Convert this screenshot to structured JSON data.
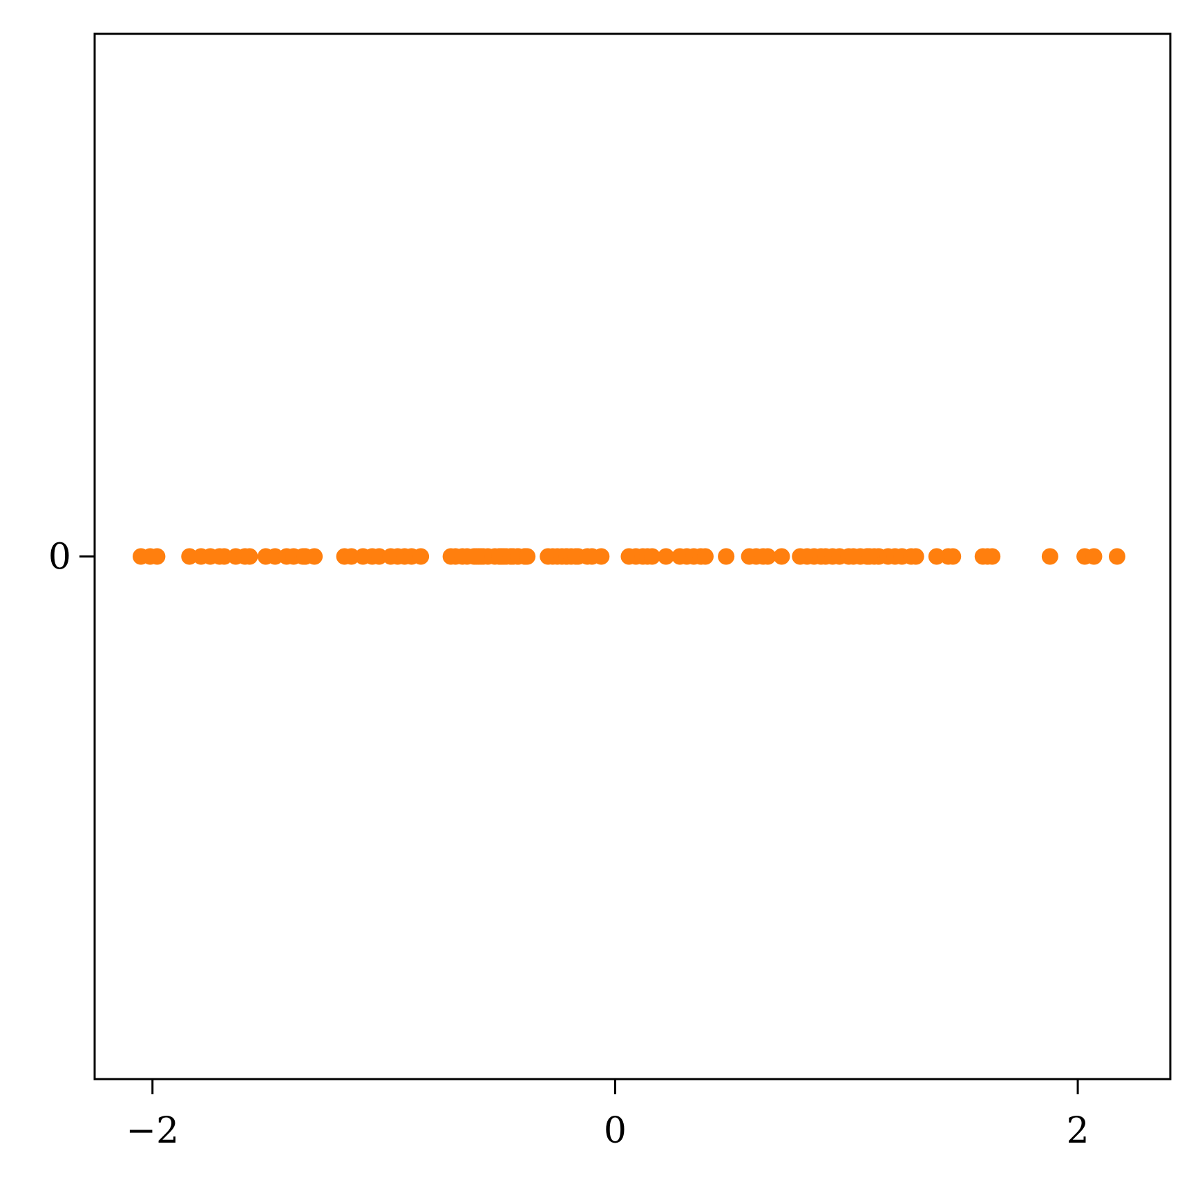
{
  "chart_data": {
    "type": "scatter",
    "title": "",
    "xlabel": "",
    "ylabel": "",
    "xlim": [
      -2.25,
      2.4
    ],
    "ylim": [
      -1,
      1
    ],
    "x_ticks": [
      -2,
      0,
      2
    ],
    "x_tick_labels": [
      "−2",
      "0",
      "2"
    ],
    "y_ticks": [
      0
    ],
    "y_tick_labels": [
      "0"
    ],
    "grid": false,
    "legend": "none",
    "series": [
      {
        "color": "#ff7f0e",
        "x": [
          -2.05,
          -2.01,
          -1.98,
          -1.84,
          -1.79,
          -1.75,
          -1.71,
          -1.69,
          -1.64,
          -1.6,
          -1.58,
          -1.51,
          -1.47,
          -1.42,
          -1.39,
          -1.35,
          -1.34,
          -1.3,
          -1.34,
          -1.17,
          -1.14,
          -1.09,
          -1.05,
          -1.02,
          -0.97,
          -0.94,
          -0.91,
          -0.88,
          -0.84,
          -0.71,
          -0.69,
          -0.66,
          -0.64,
          -0.61,
          -0.59,
          -0.55,
          -0.52,
          -0.5,
          -0.47,
          -0.45,
          -0.39,
          -0.49,
          -0.48,
          -0.5,
          -0.42,
          -0.44,
          -0.57,
          -0.49,
          -0.45,
          -0.39,
          -0.58,
          -0.6,
          -0.42,
          -0.38,
          -0.21,
          -0.16,
          -0.29,
          -0.27,
          -0.25,
          -0.23,
          -0.21,
          -0.19,
          -0.17,
          -0.12,
          -0.06,
          -0.1,
          0.06,
          0.09,
          0.12,
          0.14,
          0.16,
          0.22,
          0.28,
          0.31,
          0.34,
          0.37,
          0.39,
          0.48,
          0.58,
          0.61,
          0.66,
          0.64,
          0.72,
          0.8,
          0.83,
          0.86,
          0.89,
          0.91,
          0.94,
          0.97,
          1.01,
          1.03,
          1.06,
          1.09,
          1.12,
          1.09,
          1.14,
          1.1,
          1.18,
          1.21,
          1.24,
          1.28,
          1.3,
          1.39,
          1.44,
          1.46,
          1.59,
          1.61,
          1.63,
          1.88,
          2.03,
          2.07,
          2.17
        ],
        "y": [
          0,
          0,
          0,
          0,
          0,
          0,
          0,
          0,
          0,
          0,
          0,
          0,
          0,
          0,
          0,
          0,
          0,
          0,
          0,
          0,
          0,
          0,
          0,
          0,
          0,
          0,
          0,
          0,
          0,
          0,
          0,
          0,
          0,
          0,
          0,
          0,
          0,
          0,
          0,
          0,
          0,
          0,
          0,
          0,
          0,
          0,
          0,
          0,
          0,
          0,
          0,
          0,
          0,
          0,
          0,
          0,
          0,
          0,
          0,
          0,
          0,
          0,
          0,
          0,
          0,
          0,
          0,
          0,
          0,
          0,
          0,
          0,
          0,
          0,
          0,
          0,
          0,
          0,
          0,
          0,
          0,
          0,
          0,
          0,
          0,
          0,
          0,
          0,
          0,
          0,
          0,
          0,
          0,
          0,
          0,
          0,
          0,
          0,
          0,
          0,
          0,
          0,
          0,
          0,
          0,
          0,
          0,
          0,
          0,
          0,
          0,
          0,
          0
        ]
      }
    ]
  }
}
